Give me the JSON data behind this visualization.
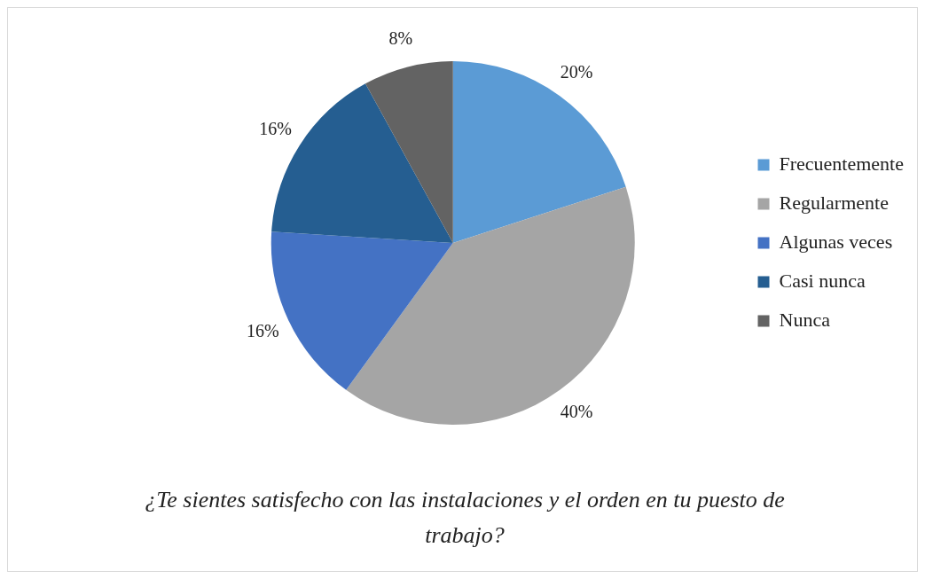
{
  "chart_data": {
    "type": "pie",
    "title": "¿Te sientes satisfecho con las instalaciones y el orden en tu puesto de trabajo?",
    "categories": [
      "Frecuentemente",
      "Regularmente",
      "Algunas veces",
      "Casi nunca",
      "Nunca"
    ],
    "values": [
      20,
      40,
      16,
      16,
      8
    ],
    "value_labels": [
      "20%",
      "40%",
      "16%",
      "16%",
      "8%"
    ],
    "colors": [
      "#5b9bd5",
      "#a5a5a5",
      "#4472c4",
      "#255e91",
      "#636363"
    ],
    "legend": "right"
  }
}
